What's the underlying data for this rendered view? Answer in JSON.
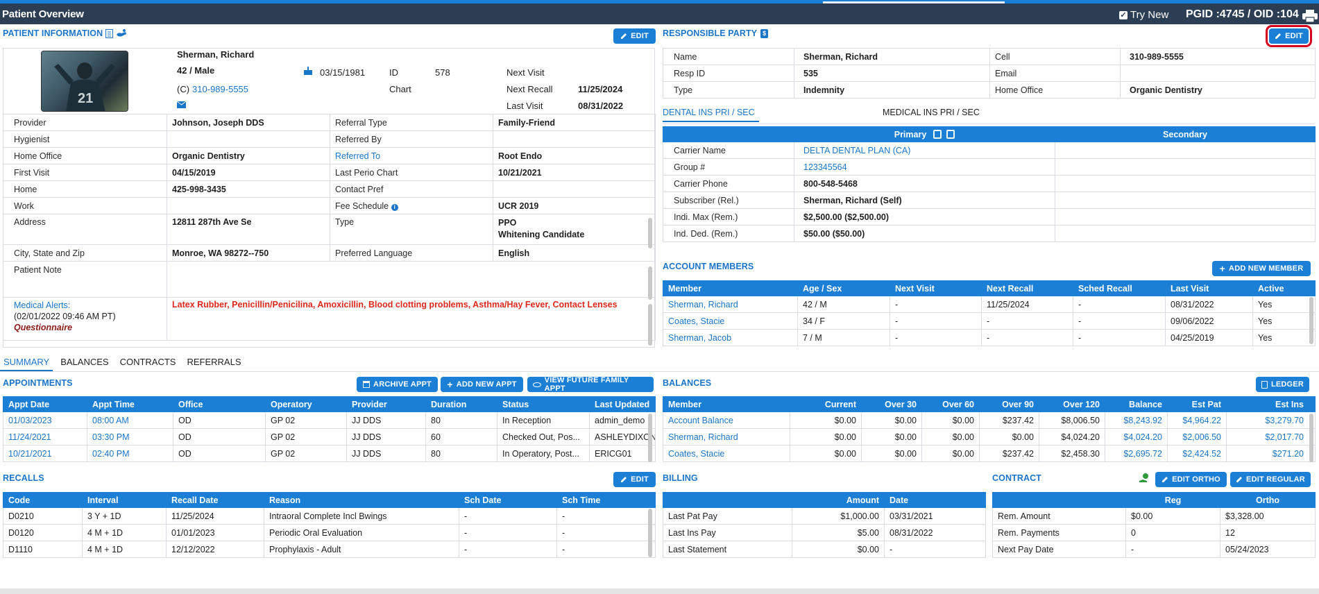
{
  "app": {
    "title": "Patient Overview",
    "try_new": "Try New",
    "ids": "PGID :4745  /  OID :104"
  },
  "patient_info": {
    "heading": "PATIENT INFORMATION",
    "edit_label": "EDIT",
    "name": "Sherman, Richard",
    "age_sex": "42 / Male",
    "phone_prefix": "(C)",
    "phone": "310-989-5555",
    "dob": "03/15/1981",
    "id_label": "ID",
    "id_value": "578",
    "chart_label": "Chart",
    "next_visit_label": "Next Visit",
    "next_visit": "",
    "next_recall_label": "Next Recall",
    "next_recall": "11/25/2024",
    "last_visit_label": "Last Visit",
    "last_visit": "08/31/2022",
    "rows": [
      {
        "l1": "Provider",
        "v1": "Johnson, Joseph DDS",
        "l2": "Referral Type",
        "v2": "Family-Friend"
      },
      {
        "l1": "Hygienist",
        "v1": "",
        "l2": "Referred By",
        "v2": ""
      },
      {
        "l1": "Home Office",
        "v1": "Organic Dentistry",
        "l2": "Referred To",
        "v2": "Root Endo"
      },
      {
        "l1": "First Visit",
        "v1": "04/15/2019",
        "l2": "Last Perio Chart",
        "v2": "10/21/2021"
      },
      {
        "l1": "Home",
        "v1": "425-998-3435",
        "l2": "Contact Pref",
        "v2": ""
      },
      {
        "l1": "Work",
        "v1": "",
        "l2": "Fee Schedule",
        "v2": "UCR 2019"
      }
    ],
    "address_label": "Address",
    "address": "12811 287th Ave Se",
    "type_label": "Type",
    "type_1": "PPO",
    "type_2": "Whitening Candidate",
    "city_label": "City, State and Zip",
    "city": "Monroe, WA 98272--750",
    "lang_label": "Preferred Language",
    "lang": "English",
    "note_label": "Patient Note",
    "alerts_label": "Medical Alerts:",
    "alerts_date": "(02/01/2022 09:46 AM PT)",
    "alerts_q": "Questionnaire",
    "alerts_text": "Latex Rubber, Penicillin/Penicilina, Amoxicillin, Blood clotting problems, Asthma/Hay Fever, Contact Lenses"
  },
  "responsible": {
    "heading": "RESPONSIBLE PARTY",
    "edit_label": "EDIT",
    "rows": [
      {
        "l1": "Name",
        "v1": "Sherman, Richard",
        "l2": "Cell",
        "v2": "310-989-5555"
      },
      {
        "l1": "Resp ID",
        "v1": "535",
        "l2": "Email",
        "v2": ""
      },
      {
        "l1": "Type",
        "v1": "Indemnity",
        "l2": "Home Office",
        "v2": "Organic Dentistry"
      }
    ]
  },
  "insurance": {
    "tab_dental": "DENTAL INS PRI / SEC",
    "tab_medical": "MEDICAL INS PRI / SEC",
    "primary": "Primary",
    "secondary": "Secondary",
    "rows": [
      {
        "label": "Carrier Name",
        "value": "DELTA DENTAL PLAN (CA)",
        "link": true
      },
      {
        "label": "Group #",
        "value": "123345564",
        "link": true
      },
      {
        "label": "Carrier Phone",
        "value": "800-548-5468",
        "link": false
      },
      {
        "label": "Subscriber (Rel.)",
        "value": "Sherman, Richard (Self)",
        "link": false
      },
      {
        "label": "Indi. Max (Rem.)",
        "value": "$2,500.00 ($2,500.00)",
        "link": false
      },
      {
        "label": "Ind. Ded. (Rem.)",
        "value": "$50.00 ($50.00)",
        "link": false
      }
    ]
  },
  "account_members": {
    "heading": "ACCOUNT MEMBERS",
    "add_label": "ADD NEW MEMBER",
    "columns": [
      "Member",
      "Age / Sex",
      "Next Visit",
      "Next Recall",
      "Sched Recall",
      "Last Visit",
      "Active"
    ],
    "rows": [
      [
        "Sherman, Richard",
        "42 / M",
        "-",
        "11/25/2024",
        "-",
        "08/31/2022",
        "Yes"
      ],
      [
        "Coates, Stacie",
        "34 / F",
        "-",
        "-",
        "-",
        "09/06/2022",
        "Yes"
      ],
      [
        "Sherman, Jacob",
        "7 / M",
        "-",
        "-",
        "-",
        "04/25/2019",
        "Yes"
      ]
    ]
  },
  "bottom_tabs": [
    "SUMMARY",
    "BALANCES",
    "CONTRACTS",
    "REFERRALS"
  ],
  "appointments": {
    "heading": "APPOINTMENTS",
    "archive_label": "ARCHIVE APPT",
    "add_label": "ADD NEW APPT",
    "future_label": "VIEW FUTURE FAMILY APPT",
    "columns": [
      "Appt Date",
      "Appt Time",
      "Office",
      "Operatory",
      "Provider",
      "Duration",
      "Status",
      "Last Updated"
    ],
    "rows": [
      [
        "01/03/2023",
        "08:00 AM",
        "OD",
        "GP 02",
        "JJ DDS",
        "80",
        "In Reception",
        "admin_demo"
      ],
      [
        "11/24/2021",
        "03:30 PM",
        "OD",
        "GP 02",
        "JJ DDS",
        "60",
        "Checked Out, Pos...",
        "ASHLEYDIXONZ"
      ],
      [
        "10/21/2021",
        "02:40 PM",
        "OD",
        "GP 02",
        "JJ DDS",
        "80",
        "In Operatory, Post...",
        "ERICG01"
      ]
    ]
  },
  "balances": {
    "heading": "BALANCES",
    "ledger_label": "LEDGER",
    "columns": [
      "Member",
      "Current",
      "Over 30",
      "Over 60",
      "Over 90",
      "Over 120",
      "Balance",
      "Est Pat",
      "Est Ins"
    ],
    "rows": [
      [
        "Account Balance",
        "$0.00",
        "$0.00",
        "$0.00",
        "$237.42",
        "$8,006.50",
        "$8,243.92",
        "$4,964.22",
        "$3,279.70"
      ],
      [
        "Sherman, Richard",
        "$0.00",
        "$0.00",
        "$0.00",
        "$0.00",
        "$4,024.20",
        "$4,024.20",
        "$2,006.50",
        "$2,017.70"
      ],
      [
        "Coates, Stacie",
        "$0.00",
        "$0.00",
        "$0.00",
        "$237.42",
        "$2,458.30",
        "$2,695.72",
        "$2,424.52",
        "$271.20"
      ]
    ]
  },
  "recalls": {
    "heading": "RECALLS",
    "edit_label": "EDIT",
    "columns": [
      "Code",
      "Interval",
      "Recall Date",
      "Reason",
      "Sch Date",
      "Sch Time"
    ],
    "rows": [
      [
        "D0210",
        "3 Y + 1D",
        "11/25/2024",
        "Intraoral Complete Incl Bwings",
        "-",
        "-"
      ],
      [
        "D0120",
        "4 M + 1D",
        "01/01/2023",
        "Periodic Oral Evaluation",
        "-",
        "-"
      ],
      [
        "D1110",
        "4 M + 1D",
        "12/12/2022",
        "Prophylaxis - Adult",
        "-",
        "-"
      ]
    ]
  },
  "billing": {
    "heading": "BILLING",
    "columns": [
      "",
      "Amount",
      "Date"
    ],
    "rows": [
      [
        "Last Pat Pay",
        "$1,000.00",
        "03/31/2021"
      ],
      [
        "Last Ins Pay",
        "$5.00",
        "08/31/2022"
      ],
      [
        "Last Statement",
        "$0.00",
        "-"
      ]
    ]
  },
  "contract": {
    "heading": "CONTRACT",
    "edit_ortho_label": "EDIT ORTHO",
    "edit_regular_label": "EDIT REGULAR",
    "columns": [
      "",
      "Reg",
      "Ortho"
    ],
    "rows": [
      [
        "Rem. Amount",
        "$0.00",
        "$3,328.00"
      ],
      [
        "Rem. Payments",
        "0",
        "12"
      ],
      [
        "Next Pay Date",
        "-",
        "05/24/2023"
      ]
    ]
  },
  "colors": {
    "brand": "#1b7fd6",
    "titlebar": "#2c3e54",
    "alert": "#e0281c"
  }
}
